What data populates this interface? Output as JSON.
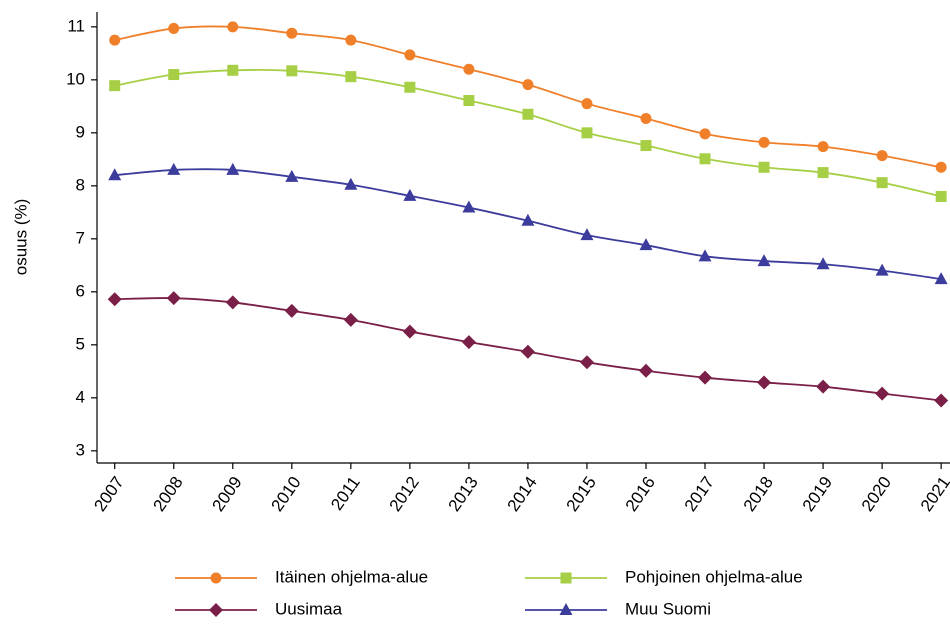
{
  "chart_data": {
    "type": "line",
    "y_label": "osuus (%)",
    "x": [
      2007,
      2008,
      2009,
      2010,
      2011,
      2012,
      2013,
      2014,
      2015,
      2016,
      2017,
      2018,
      2019,
      2020,
      2021
    ],
    "xticks": [
      2007,
      2008,
      2009,
      2010,
      2011,
      2012,
      2013,
      2014,
      2015,
      2016,
      2017,
      2018,
      2019,
      2020,
      2021
    ],
    "xlim": [
      2006.7,
      2021.15
    ],
    "ylim": [
      2.77,
      11.28
    ],
    "yticks": [
      3,
      4,
      5,
      6,
      7,
      8,
      9,
      10,
      11
    ],
    "grid": false,
    "legend": "bottom",
    "series": [
      {
        "name": "Itäinen ohjelma-alue",
        "color": "#f07f2a",
        "marker": "circle",
        "values": [
          10.75,
          10.97,
          11.0,
          10.88,
          10.75,
          10.47,
          10.2,
          9.91,
          9.55,
          9.27,
          8.98,
          8.82,
          8.74,
          8.57,
          8.35
        ]
      },
      {
        "name": "Pohjoinen ohjelma-alue",
        "color": "#a6cf45",
        "marker": "square",
        "values": [
          9.89,
          10.1,
          10.18,
          10.17,
          10.06,
          9.86,
          9.61,
          9.35,
          9.0,
          8.76,
          8.51,
          8.35,
          8.25,
          8.06,
          7.8
        ]
      },
      {
        "name": "Uusimaa",
        "color": "#7a1f47",
        "marker": "diamond",
        "values": [
          5.86,
          5.88,
          5.8,
          5.64,
          5.47,
          5.25,
          5.05,
          4.87,
          4.67,
          4.51,
          4.38,
          4.29,
          4.21,
          4.08,
          3.95
        ]
      },
      {
        "name": "Muu Suomi",
        "color": "#3c3c9c",
        "marker": "triangle",
        "values": [
          8.2,
          8.3,
          8.3,
          8.17,
          8.02,
          7.81,
          7.59,
          7.34,
          7.07,
          6.88,
          6.67,
          6.58,
          6.52,
          6.4,
          6.24
        ]
      }
    ]
  }
}
